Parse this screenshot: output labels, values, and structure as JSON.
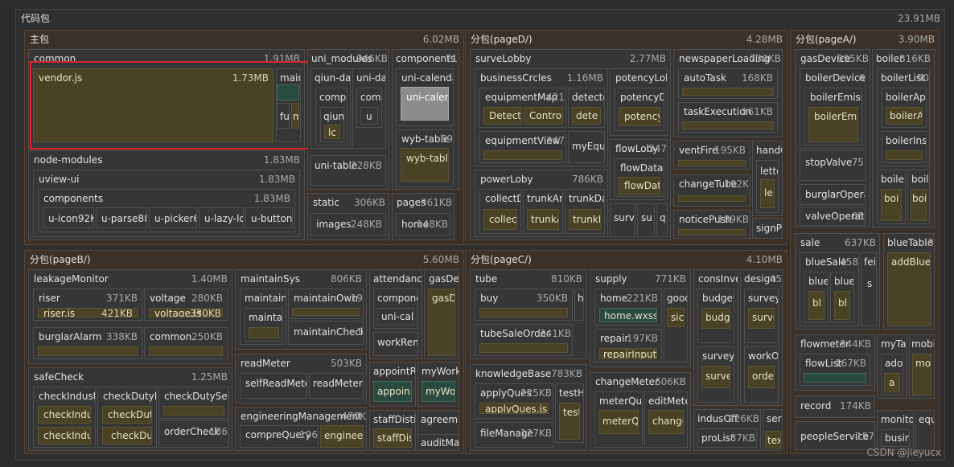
{
  "root": {
    "label": "代码包",
    "size": "23.91MB"
  },
  "main": {
    "label": "主包",
    "size": "6.02MB",
    "common": {
      "label": "common",
      "size": "1.91MB",
      "vendor": {
        "label": "vendor.js",
        "size": "1.73MB"
      },
      "c1": "main",
      "c2": "fu",
      "c3": "m"
    },
    "node_modules": {
      "label": "node-modules",
      "size": "1.83MB"
    },
    "uview": {
      "label": "uview-ui",
      "size": "1.83MB"
    },
    "components": {
      "label": "components",
      "size": "1.83MB",
      "items": [
        "u-icon92KB",
        "u-parse88KB",
        "u-picker63KB",
        "u-lazy-load",
        "u-button"
      ]
    },
    "uni_modules": {
      "label": "uni_modules",
      "size": "946KB",
      "qiun": "qiun-dat",
      "unida": "uni-da",
      "comp1": "compo",
      "comp2": "com",
      "qiun2": "qiun",
      "u2": "u",
      "lc": "lc",
      "unitable": "uni-table",
      "unitable_size": "228KB"
    },
    "components2": {
      "label": "components",
      "size": "71",
      "calendar": "uni-calendar",
      "calendar_inner": "uni-calend",
      "wyb": "wyb-table",
      "wyb_size": "69",
      "wyb_inner": "wyb-table"
    },
    "static": {
      "label": "static",
      "size": "306KB",
      "images": "images",
      "images_size": "248KB"
    },
    "pages": {
      "label": "pages",
      "size": "361KB",
      "home": "home",
      "home_size": "148KB"
    }
  },
  "pageD": {
    "label": "分包(pageD/)",
    "size": "4.28MB",
    "surveyLobby": {
      "label": "surveLobby",
      "size": "2.77MB"
    },
    "businessCrcles": {
      "label": "businessCrcles",
      "size": "1.16MB",
      "equipmentMap": "equipmentMap",
      "equipmentMap_size": "421",
      "detectc": "detectc",
      "detectc2": "Detectc",
      "control": "Control",
      "dete": "dete",
      "equipmentView": "equipmentView",
      "equipmentView_size": "347",
      "myEqui": "myEqui"
    },
    "potencyLoby": {
      "label": "potencyLoby",
      "potencyD": "potencyD",
      "potency": "potency"
    },
    "flowLoby": {
      "label": "flowLoby",
      "size": "347",
      "flowDataC": "flowDataC",
      "flowDat": "flowDat"
    },
    "powerLoby": {
      "label": "powerLoby",
      "size": "786KB",
      "collectD": "collectD",
      "collec": "collec",
      "trunkAn": "trunkAn",
      "trunkA": "trunkA",
      "trunkDa": "trunkDa",
      "trunkI": "trunkI",
      "surve": "surve",
      "su": "su",
      "q": "q"
    },
    "newspaperLoading": {
      "label": "newspaperLoading",
      "size": "730KB",
      "autoTask": "autoTask",
      "autoTask_size": "168KB",
      "taskExecution": "taskExecution",
      "taskExecution_size": "161KB"
    },
    "ventFire": {
      "label": "ventFire",
      "size": "195KB"
    },
    "handC": {
      "label": "handC",
      "lette": "lette",
      "le": "le"
    },
    "changeTube": {
      "label": "changeTube",
      "size": "192K"
    },
    "noticePush": {
      "label": "noticePush",
      "size": "189KB"
    },
    "signPi": {
      "label": "signPi"
    }
  },
  "pageA": {
    "label": "分包(pageA/)",
    "size": "3.90MB",
    "gasDevice": {
      "label": "gasDevice",
      "size": "995KB",
      "boilerDevice": "boilerDevice",
      "boilerDevice_size": "6",
      "boilerEmissi": "boilerEmissi",
      "boilerEmi": "boilerEmi",
      "stopValve": "stopValve",
      "stopValve_size": "75",
      "burglarOperat": "burglarOperat",
      "valveOperat": "valveOperat",
      "valveOperat_size": "65"
    },
    "boiler": {
      "label": "boiler",
      "size": "816KB",
      "boilerList": "boilerList",
      "boilerList_size": "50",
      "boilerAp": "boilerAp",
      "boilerA": "boilerA",
      "boilerIns": "boilerIns",
      "boile1": "boile",
      "boi1": "boi",
      "boil": "boil",
      "boi2": "boi"
    },
    "sale": {
      "label": "sale",
      "size": "637KB",
      "blueSale": "blueSale",
      "blueSale_size": "458",
      "feil": "feil",
      "blue1": "blue",
      "blue2": "blue",
      "bl1": "bl",
      "bl2": "bl",
      "s": "s"
    },
    "blueTable": {
      "label": "blueTable",
      "size": "3",
      "addBlue": "addBlue"
    },
    "flowmeter": {
      "label": "flowmeter",
      "size": "344KB",
      "flowList": "flowList",
      "flowList_size": "167KB",
      "myTal": "myTal",
      "ado": "ado",
      "a": "a",
      "mobi": "mobi",
      "mo": "mo"
    },
    "record": {
      "label": "record",
      "size": "174KB"
    },
    "monito": {
      "label": "monito",
      "busin": "busin",
      "equ": "equ"
    },
    "peopleService": {
      "label": "peopleService",
      "size": "157"
    }
  },
  "pageB": {
    "label": "分包(pageB/)",
    "size": "5.60MB",
    "leakageMonitor": {
      "label": "leakageMonitor",
      "size": "1.40MB",
      "riser": "riser",
      "riser_size": "371KB",
      "riserjs": "riser.js",
      "riserjs_size": "421KB",
      "voltage": "voltage",
      "voltage_size": "280KB",
      "voltagejs": "voltage.js",
      "voltagejs_size": "330KB",
      "burglarAlarm": "burglarAlarm",
      "burglarAlarm_size": "338KB",
      "common": "common",
      "common_size": "250KB"
    },
    "safeCheck": {
      "label": "safeCheck",
      "size": "1.25MB",
      "checkIndustry": "checkIndustry",
      "checkIndus1": "checkIndus",
      "checkIndus2": "checkIndus",
      "checkDutyList": "checkDutyList",
      "checkDuty": "checkDuty",
      "checkDu": "checkDu",
      "checkDutySelf": "checkDutySelf2",
      "orderCheck": "orderCheck",
      "orderCheck_size": "186"
    },
    "maintainSys": {
      "label": "maintainSys",
      "size": "806KB",
      "maintainLi": "maintainLi",
      "maintai": "maintai",
      "maintainOwn": "maintainOwn",
      "maintainOwn_size": "19",
      "maintainCheck": "maintainCheck",
      "maintainCheck_size": "1"
    },
    "readMeter": {
      "label": "readMeter",
      "size": "503KB",
      "selfReadMeter": "selfReadMeter",
      "readMeterIn": "readMeterIn"
    },
    "engineeringManagement": {
      "label": "engineeringManagement",
      "size": "470K",
      "compreQuery": "compreQuery",
      "compreQuery_size": "196",
      "engineer": "engineer"
    },
    "attendance": {
      "label": "attendance",
      "compone": "compone",
      "unical": "uni-cal",
      "workRem": "workRem"
    },
    "gasDev": {
      "label": "gasDev",
      "gasD": "gasD"
    },
    "appointR": {
      "label": "appointR",
      "appoin": "appoin"
    },
    "myWorkC": {
      "label": "myWorkC",
      "myWo": "myWo"
    },
    "staffDisti": {
      "label": "staffDisti",
      "staffDis": "staffDis"
    },
    "agreeme": {
      "label": "agreeme",
      "auditMar": "auditMar"
    }
  },
  "pageC": {
    "label": "分包(pageC/)",
    "size": "4.10MB",
    "tube": {
      "label": "tube",
      "size": "810KB",
      "buy": "buy",
      "buy_size": "350KB",
      "h": "h",
      "tubeSaleOrder": "tubeSaleOrder",
      "tubeSaleOrder_size": "341KB"
    },
    "knowledgeBase": {
      "label": "knowledgeBase",
      "size": "783KB",
      "applyQues": "applyQues",
      "applyQues_size": "225KB",
      "applyQuesjs": "applyQues.js",
      "testHi": "testHi",
      "test": "test",
      "fileManage": "fileManage",
      "fileManage_size": "127KB"
    },
    "supply": {
      "label": "supply",
      "size": "771KB",
      "home": "home",
      "home_size": "221KB",
      "homewxss": "home.wxss",
      "repair": "repair",
      "repair_size": "197KB",
      "repairInput": "repairInput",
      "good": "good",
      "sic": "sic"
    },
    "changeMeter": {
      "label": "changeMeter",
      "size": "606KB",
      "meterQue": "meterQue",
      "meterQ": "meterQ",
      "editMete": "editMete",
      "change": "change"
    },
    "consInves": {
      "label": "consInves",
      "budget": "budget",
      "budg": "budg",
      "surveyS": "surveyS",
      "surve": "surve"
    },
    "design": {
      "label": "design",
      "size": "45",
      "survey": "surveyS",
      "surve2": "surve",
      "workO": "workO",
      "orde": "orde"
    },
    "indusOff": {
      "label": "indusOff",
      "size": "226KB",
      "proList": "proList",
      "proList_size": "87KB"
    },
    "serv": {
      "label": "serv",
      "text": "text"
    }
  },
  "watermark": "CSDN @jieyucx"
}
